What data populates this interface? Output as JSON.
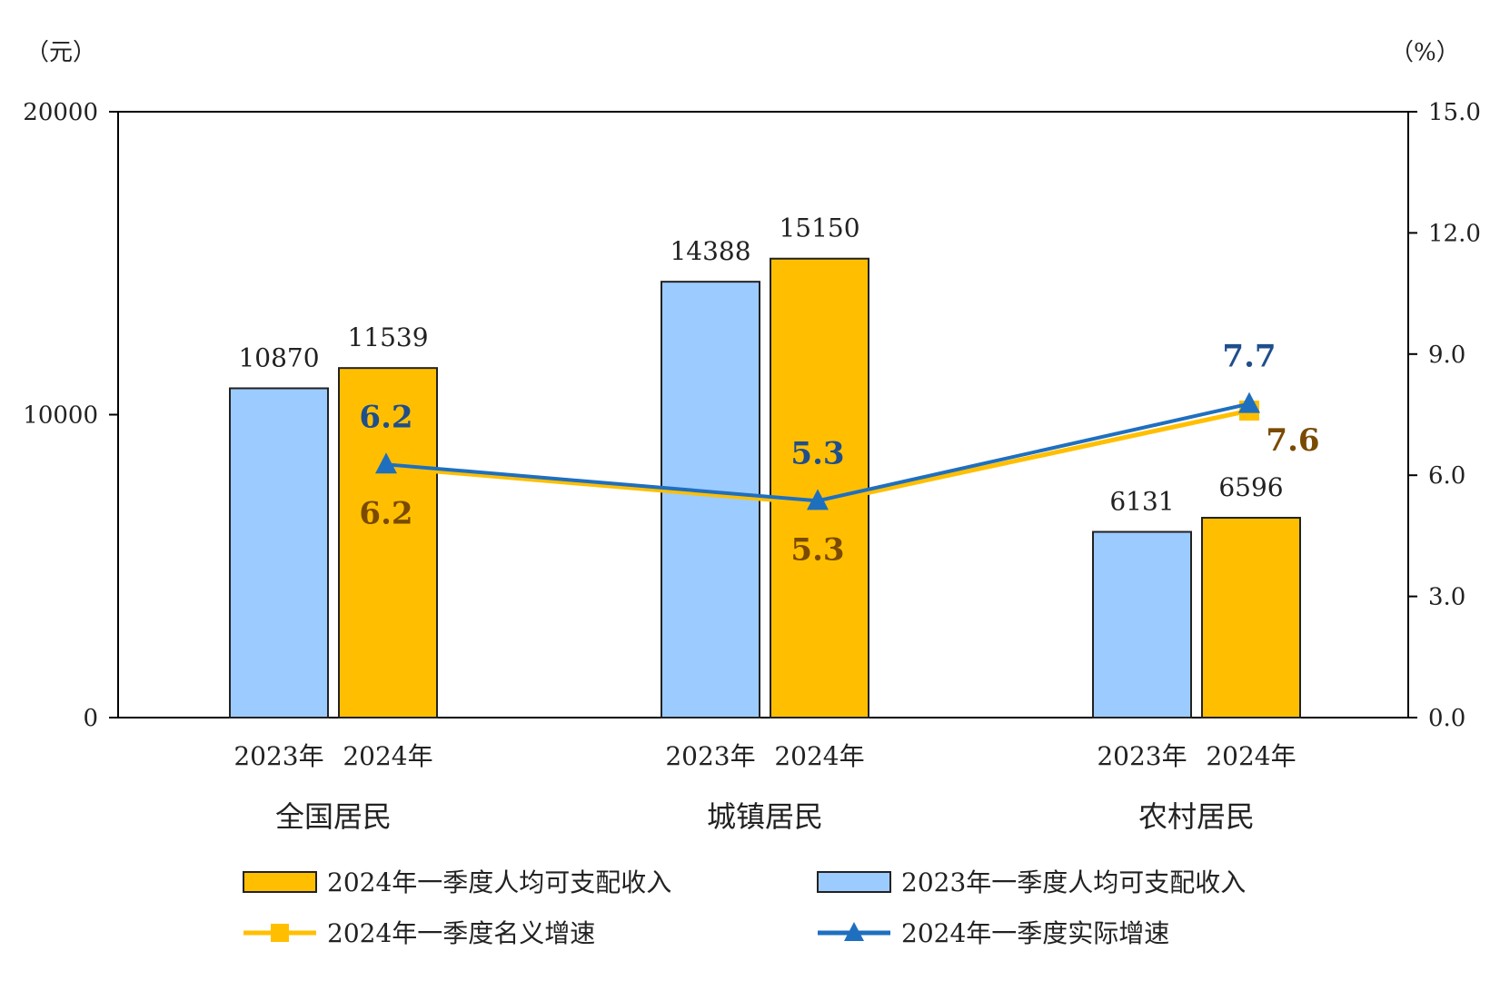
{
  "chart_data": {
    "type": "bar",
    "left_axis": {
      "unit": "（元）",
      "ylim": [
        0,
        20000
      ],
      "ticks": [
        "0",
        "10000",
        "20000"
      ]
    },
    "right_axis": {
      "unit": "（%）",
      "ylim": [
        0,
        15
      ],
      "ticks": [
        "0.0",
        "3.0",
        "6.0",
        "9.0",
        "12.0",
        "15.0"
      ]
    },
    "groups": [
      "全国居民",
      "城镇居民",
      "农村居民"
    ],
    "year_labels": [
      "2023年",
      "2024年"
    ],
    "series": [
      {
        "name": "2023年一季度人均可支配收入",
        "kind": "bar",
        "color": "#9ccbff",
        "values": [
          10870,
          14388,
          6131
        ],
        "labels": [
          "10870",
          "14388",
          "6131"
        ]
      },
      {
        "name": "2024年一季度人均可支配收入",
        "kind": "bar",
        "color": "#ffbf00",
        "values": [
          11539,
          15150,
          6596
        ],
        "labels": [
          "11539",
          "15150",
          "6596"
        ]
      },
      {
        "name": "2024年一季度名义增速",
        "kind": "line",
        "marker": "square",
        "color": "#ffbf00",
        "values": [
          6.2,
          5.3,
          7.6
        ],
        "labels": [
          "6.2",
          "5.3",
          "7.6"
        ]
      },
      {
        "name": "2024年一季度实际增速",
        "kind": "line",
        "marker": "triangle",
        "color": "#1f6fbf",
        "values": [
          6.2,
          5.3,
          7.7
        ],
        "labels": [
          "6.2",
          "5.3",
          "7.7"
        ]
      }
    ],
    "legend_position": "bottom",
    "grid": false
  }
}
